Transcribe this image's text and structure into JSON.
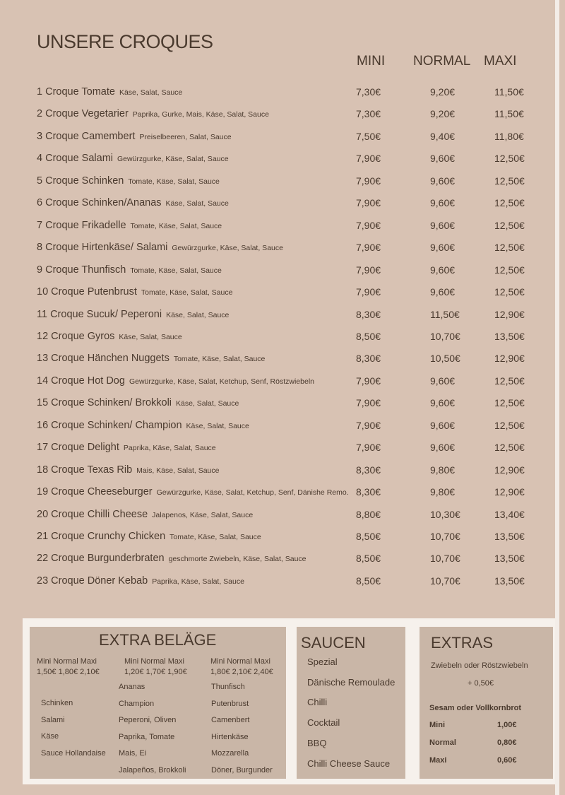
{
  "title": "UNSERE CROQUES",
  "columns": [
    "MINI",
    "NORMAL",
    "MAXI"
  ],
  "items": [
    {
      "name": "1 Croque Tomate",
      "desc": "Käse,  Salat, Sauce",
      "mini": "7,30€",
      "normal": "9,20€",
      "maxi": "11,50€"
    },
    {
      "name": "2 Croque Vegetarier",
      "desc": "Paprika, Gurke, Mais, Käse,  Salat, Sauce",
      "mini": "7,30€",
      "normal": "9,20€",
      "maxi": "11,50€"
    },
    {
      "name": "3 Croque Camembert",
      "desc": "Preiselbeeren, Salat, Sauce",
      "mini": "7,50€",
      "normal": "9,40€",
      "maxi": "11,80€"
    },
    {
      "name": "4 Croque Salami",
      "desc": "Gewürzgurke, Käse, Salat, Sauce",
      "mini": "7,90€",
      "normal": "9,60€",
      "maxi": "12,50€"
    },
    {
      "name": "5 Croque Schinken",
      "desc": "Tomate, Käse, Salat, Sauce",
      "mini": "7,90€",
      "normal": "9,60€",
      "maxi": "12,50€"
    },
    {
      "name": "6 Croque Schinken/Ananas",
      "desc": "Käse, Salat, Sauce",
      "mini": "7,90€",
      "normal": "9,60€",
      "maxi": "12,50€"
    },
    {
      "name": "7 Croque Frikadelle",
      "desc": "Tomate, Käse, Salat, Sauce",
      "mini": "7,90€",
      "normal": "9,60€",
      "maxi": "12,50€"
    },
    {
      "name": "8 Croque Hirtenkäse/ Salami",
      "desc": "Gewürzgurke, Käse, Salat, Sauce",
      "mini": "7,90€",
      "normal": "9,60€",
      "maxi": "12,50€"
    },
    {
      "name": "9 Croque Thunfisch",
      "desc": "Tomate, Käse, Salat, Sauce",
      "mini": "7,90€",
      "normal": "9,60€",
      "maxi": "12,50€"
    },
    {
      "name": "10 Croque Putenbrust",
      "desc": "Tomate, Käse, Salat, Sauce",
      "mini": "7,90€",
      "normal": "9,60€",
      "maxi": "12,50€"
    },
    {
      "name": "11 Croque Sucuk/ Peperoni",
      "desc": "Käse, Salat, Sauce",
      "mini": "8,30€",
      "normal": "11,50€",
      "maxi": "12,90€"
    },
    {
      "name": "12 Croque Gyros",
      "desc": "Käse, Salat, Sauce",
      "mini": "8,50€",
      "normal": "10,70€",
      "maxi": "13,50€"
    },
    {
      "name": "13 Croque Hänchen Nuggets",
      "desc": "Tomate, Käse, Salat, Sauce",
      "mini": "8,30€",
      "normal": "10,50€",
      "maxi": "12,90€"
    },
    {
      "name": "14 Croque Hot Dog",
      "desc": "Gewürzgurke, Käse, Salat, Ketchup, Senf, Röstzwiebeln",
      "mini": "7,90€",
      "normal": "9,60€",
      "maxi": "12,50€"
    },
    {
      "name": "15 Croque Schinken/ Brokkoli",
      "desc": "Käse, Salat, Sauce",
      "mini": "7,90€",
      "normal": "9,60€",
      "maxi": "12,50€"
    },
    {
      "name": "16 Croque Schinken/ Champion",
      "desc": "Käse, Salat, Sauce",
      "mini": "7,90€",
      "normal": "9,60€",
      "maxi": "12,50€"
    },
    {
      "name": "17 Croque Delight",
      "desc": "Paprika, Käse, Salat, Sauce",
      "mini": "7,90€",
      "normal": "9,60€",
      "maxi": "12,50€"
    },
    {
      "name": "18 Croque Texas Rib",
      "desc": "Mais, Käse, Salat, Sauce",
      "mini": "8,30€",
      "normal": "9,80€",
      "maxi": "12,90€"
    },
    {
      "name": "19 Croque Cheeseburger",
      "desc": "Gewürzgurke, Käse, Salat, Ketchup, Senf, Dänishe Remo.",
      "mini": "8,30€",
      "normal": "9,80€",
      "maxi": "12,90€"
    },
    {
      "name": "20 Croque Chilli Cheese",
      "desc": "Jalapenos, Käse,  Salat, Sauce",
      "mini": "8,80€",
      "normal": "10,30€",
      "maxi": "13,40€"
    },
    {
      "name": "21 Croque Crunchy Chicken",
      "desc": "Tomate, Käse, Salat, Sauce",
      "mini": "8,50€",
      "normal": "10,70€",
      "maxi": "13,50€"
    },
    {
      "name": "22 Croque Burgunderbraten",
      "desc": "geschmorte Zwiebeln, Käse,  Salat, Sauce",
      "mini": "8,50€",
      "normal": "10,70€",
      "maxi": "13,50€"
    },
    {
      "name": "23 Croque Döner Kebab",
      "desc": "Paprika, Käse, Salat, Sauce",
      "mini": "8,50€",
      "normal": "10,70€",
      "maxi": "13,50€"
    }
  ],
  "extra_belaege": {
    "title": "EXTRA BELÄGE",
    "groups": [
      {
        "header": "Mini  Normal  Maxi",
        "prices": "1,50€  1,80€  2,10€",
        "items": [
          "Schinken",
          "Salami",
          "Käse",
          "Sauce Hollandaise"
        ]
      },
      {
        "header": "Mini  Normal  Maxi",
        "prices": "1,20€  1,70€  1,90€",
        "items": [
          "Ananas",
          "Champion",
          "Peperoni, Oliven",
          "Paprika, Tomate",
          "Mais, Ei",
          "Jalapeños, Brokkoli"
        ]
      },
      {
        "header": "Mini  Normal  Maxi",
        "prices": "1,80€  2,10€  2,40€",
        "items": [
          "Thunfisch",
          "Putenbrust",
          "Camenbert",
          "Hirtenkäse",
          "Mozzarella",
          "Döner, Burgunder"
        ]
      }
    ]
  },
  "saucen": {
    "title": "SAUCEN",
    "items": [
      "Spezial",
      "Dänische Remoulade",
      "Chilli",
      "Cocktail",
      "BBQ",
      "Chilli Cheese Sauce"
    ]
  },
  "extras": {
    "title": "EXTRAS",
    "onion": "Zwiebeln oder Röstzwiebeln",
    "onion_price": "+ 0,50€",
    "bread": "Sesam oder Vollkornbrot",
    "bread_prices": [
      {
        "size": "Mini",
        "price": "1,00€"
      },
      {
        "size": "Normal",
        "price": "0,80€"
      },
      {
        "size": "Maxi",
        "price": "0,60€"
      }
    ]
  }
}
